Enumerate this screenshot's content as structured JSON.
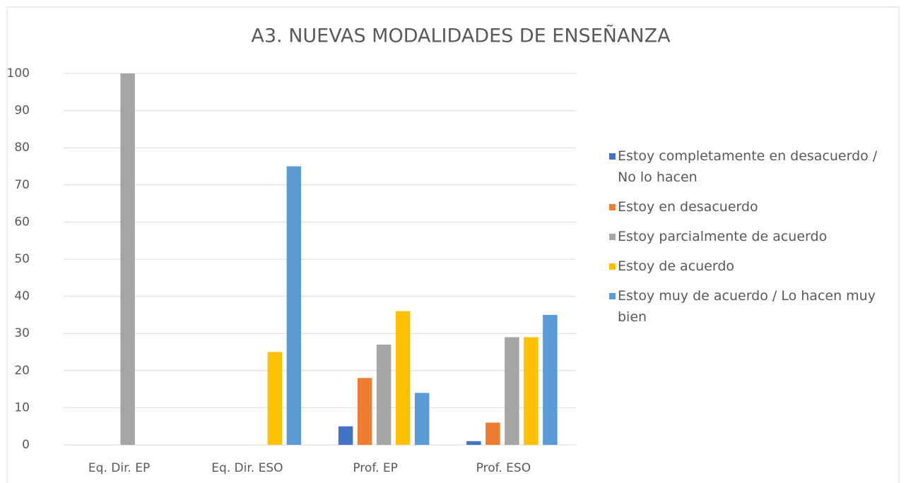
{
  "chart_data": {
    "type": "bar",
    "title": "A3. NUEVAS MODALIDADES DE ENSEÑANZA",
    "categories": [
      "Eq. Dir. EP",
      "Eq. Dir. ESO",
      "Prof. EP",
      "Prof. ESO"
    ],
    "series": [
      {
        "name": "Estoy completamente en desacuerdo / No lo hacen",
        "color": "#4472c4",
        "values": [
          0,
          0,
          5,
          1
        ]
      },
      {
        "name": "Estoy en desacuerdo",
        "color": "#ed7d31",
        "values": [
          0,
          0,
          18,
          6
        ]
      },
      {
        "name": "Estoy parcialmente de acuerdo",
        "color": "#a5a5a5",
        "values": [
          100,
          0,
          27,
          29
        ]
      },
      {
        "name": "Estoy de acuerdo",
        "color": "#ffc000",
        "values": [
          0,
          25,
          36,
          29
        ]
      },
      {
        "name": "Estoy muy de acuerdo / Lo hacen muy bien",
        "color": "#5b9bd5",
        "values": [
          0,
          75,
          14,
          35
        ]
      }
    ],
    "ylim": [
      0,
      100
    ],
    "yticks": [
      0,
      10,
      20,
      30,
      40,
      50,
      60,
      70,
      80,
      90,
      100
    ],
    "grid": true,
    "legend": "right"
  }
}
